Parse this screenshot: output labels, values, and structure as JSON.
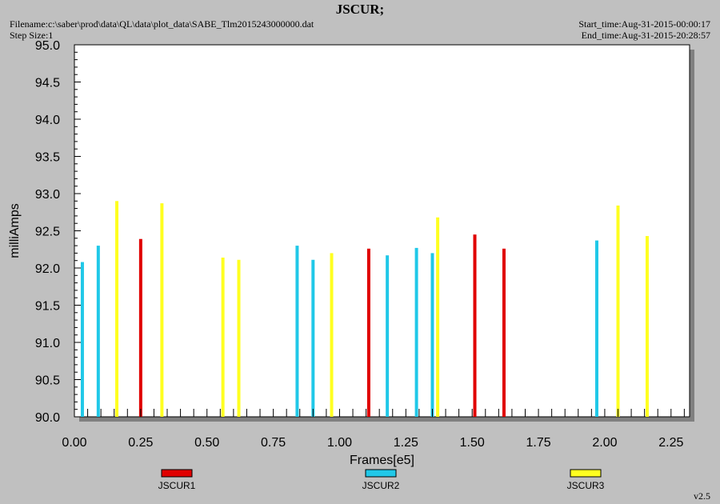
{
  "header": {
    "title": "JSCUR;",
    "filename": "Filename:c:\\saber\\prod\\data\\QL\\data\\plot_data\\SABE_Tlm2015243000000.dat",
    "step_size": "Step Size:1",
    "start_time": "Start_time:Aug-31-2015-00:00:17",
    "end_time": "End_time:Aug-31-2015-20:28:57",
    "version": "v2.5"
  },
  "colors": {
    "background": "#c0c0c0",
    "plot_area": "#ffffff",
    "JSCUR1": "#e00000",
    "JSCUR2": "#20c8e8",
    "JSCUR3": "#ffff20"
  },
  "chart_data": {
    "type": "bar",
    "title": "JSCUR;",
    "xlabel": "Frames[e5]",
    "ylabel": "milliAmps",
    "xlim": [
      0.0,
      2.32
    ],
    "ylim": [
      90.0,
      95.0
    ],
    "xticks": [
      "0.00",
      "0.25",
      "0.50",
      "0.75",
      "1.00",
      "1.25",
      "1.50",
      "1.75",
      "2.00",
      "2.25"
    ],
    "yticks": [
      "90.0",
      "90.5",
      "91.0",
      "91.5",
      "92.0",
      "92.5",
      "93.0",
      "93.5",
      "94.0",
      "94.5",
      "95.0"
    ],
    "grid": false,
    "legend_position": "bottom",
    "series": [
      {
        "name": "JSCUR1",
        "x": [
          0.25,
          1.11,
          1.51,
          1.62
        ],
        "values": [
          92.39,
          92.26,
          92.45,
          92.26
        ]
      },
      {
        "name": "JSCUR2",
        "x": [
          0.03,
          0.09,
          0.84,
          0.9,
          1.18,
          1.29,
          1.35,
          1.97
        ],
        "values": [
          92.08,
          92.3,
          92.3,
          92.11,
          92.17,
          92.27,
          92.2,
          92.37
        ]
      },
      {
        "name": "JSCUR3",
        "x": [
          0.16,
          0.33,
          0.56,
          0.62,
          0.97,
          1.37,
          2.05,
          2.16
        ],
        "values": [
          92.9,
          92.87,
          92.14,
          92.11,
          92.2,
          92.68,
          92.84,
          92.43
        ]
      }
    ]
  }
}
